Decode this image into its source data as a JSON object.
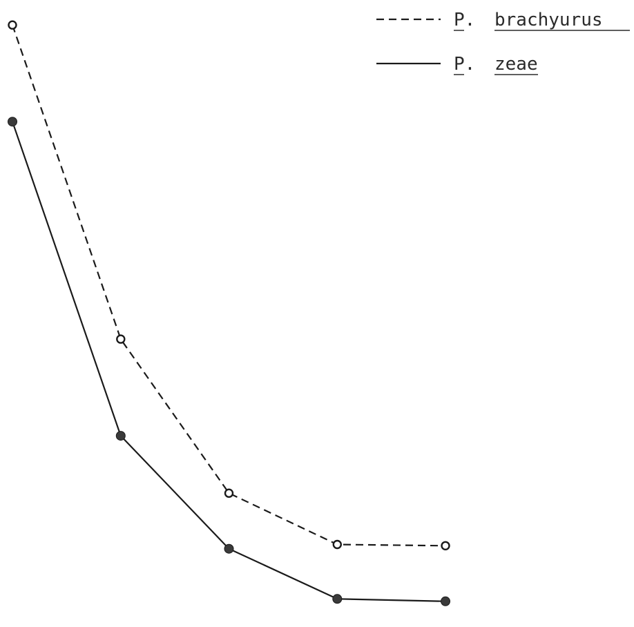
{
  "chart_data": {
    "type": "line",
    "title": "",
    "xlabel": "",
    "ylabel": "",
    "x": [
      1,
      2,
      3,
      4,
      5
    ],
    "series": [
      {
        "name_prefix": "P.",
        "name_species": "brachyurus",
        "values": [
          100,
          48,
          22.5,
          14,
          13.8
        ],
        "line_style": "dashed",
        "marker": "open-circle",
        "color": "#1a1a1a"
      },
      {
        "name_prefix": "P.",
        "name_species": "zeae",
        "values": [
          84,
          32,
          13.3,
          5,
          4.6
        ],
        "line_style": "solid",
        "marker": "filled-circle",
        "color": "#1a1a1a"
      }
    ],
    "ylim": [
      0,
      103
    ],
    "grid": false,
    "legend_position": "top-right"
  }
}
